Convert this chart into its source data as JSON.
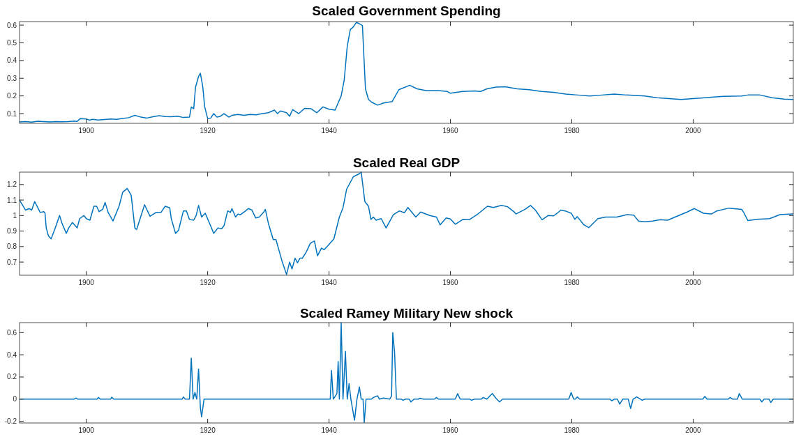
{
  "chart_data": [
    {
      "type": "line",
      "title": "Scaled Government Spending",
      "xlim": [
        1889,
        2016.5
      ],
      "ylim": [
        0.045,
        0.62
      ],
      "xticks": [
        1900,
        1920,
        1940,
        1960,
        1980,
        2000
      ],
      "yticks": [
        0.1,
        0.2,
        0.3,
        0.4,
        0.5,
        0.6
      ],
      "x": [
        1889,
        1890,
        1891,
        1892,
        1893,
        1894,
        1895,
        1896,
        1897,
        1898,
        1898.5,
        1899,
        1900,
        1900.5,
        1901,
        1902,
        1903,
        1904,
        1905,
        1906,
        1907,
        1908,
        1909,
        1910,
        1911,
        1912,
        1913,
        1914,
        1915,
        1916,
        1917,
        1917.3,
        1917.7,
        1918,
        1918.5,
        1918.8,
        1919.2,
        1919.5,
        1920,
        1920.5,
        1921,
        1921.5,
        1922,
        1922.7,
        1923.5,
        1924,
        1925,
        1926,
        1927,
        1928,
        1929,
        1930,
        1931,
        1931.5,
        1932,
        1933,
        1933.5,
        1934,
        1935,
        1936,
        1937,
        1938,
        1939,
        1940,
        1941,
        1941.5,
        1942,
        1942.5,
        1943,
        1943.5,
        1944,
        1944.5,
        1945,
        1945.5,
        1946,
        1946.5,
        1947,
        1948,
        1949,
        1950.4,
        1951.5,
        1953.3,
        1954.5,
        1956,
        1958,
        1959.5,
        1960,
        1962,
        1964,
        1965,
        1966,
        1967.5,
        1969,
        1971,
        1973,
        1975,
        1977,
        1979,
        1981,
        1983,
        1985,
        1987,
        1989,
        1992,
        1994,
        1996,
        1998,
        2000,
        2002,
        2005,
        2008,
        2009,
        2011,
        2013,
        2015,
        2016.5
      ],
      "series": [
        {
          "color": "#0072bd",
          "values": [
            0.053,
            0.055,
            0.052,
            0.057,
            0.055,
            0.053,
            0.055,
            0.054,
            0.055,
            0.058,
            0.056,
            0.072,
            0.07,
            0.063,
            0.068,
            0.064,
            0.067,
            0.07,
            0.068,
            0.073,
            0.077,
            0.09,
            0.08,
            0.075,
            0.082,
            0.088,
            0.083,
            0.082,
            0.085,
            0.078,
            0.08,
            0.137,
            0.128,
            0.25,
            0.31,
            0.328,
            0.25,
            0.14,
            0.072,
            0.075,
            0.1,
            0.08,
            0.083,
            0.1,
            0.08,
            0.09,
            0.095,
            0.09,
            0.095,
            0.093,
            0.1,
            0.105,
            0.12,
            0.1,
            0.115,
            0.105,
            0.085,
            0.123,
            0.1,
            0.13,
            0.128,
            0.105,
            0.138,
            0.125,
            0.12,
            0.16,
            0.2,
            0.29,
            0.48,
            0.575,
            0.59,
            0.615,
            0.608,
            0.598,
            0.24,
            0.18,
            0.165,
            0.148,
            0.16,
            0.168,
            0.235,
            0.26,
            0.24,
            0.23,
            0.23,
            0.225,
            0.215,
            0.225,
            0.228,
            0.225,
            0.24,
            0.25,
            0.252,
            0.24,
            0.235,
            0.225,
            0.22,
            0.21,
            0.205,
            0.2,
            0.205,
            0.21,
            0.205,
            0.2,
            0.19,
            0.185,
            0.18,
            0.185,
            0.19,
            0.198,
            0.2,
            0.205,
            0.205,
            0.19,
            0.182,
            0.18
          ]
        }
      ]
    },
    {
      "type": "line",
      "title": "Scaled Real GDP",
      "xlim": [
        1889,
        2016.5
      ],
      "ylim": [
        0.615,
        1.28
      ],
      "xticks": [
        1900,
        1920,
        1940,
        1960,
        1980,
        2000
      ],
      "yticks": [
        0.7,
        0.8,
        0.9,
        1,
        1.1,
        1.2
      ],
      "x": [
        1889,
        1889.6,
        1890,
        1890.6,
        1891,
        1891.5,
        1892.4,
        1893,
        1893.2,
        1893.4,
        1893.75,
        1894.2,
        1894.8,
        1895.6,
        1896,
        1896.7,
        1897.1,
        1897.7,
        1898.5,
        1898.9,
        1899.6,
        1900,
        1900.6,
        1901.25,
        1901.7,
        1902.1,
        1902.7,
        1903.1,
        1903.6,
        1904.4,
        1905.4,
        1906,
        1906.75,
        1907.4,
        1908,
        1908.3,
        1909.6,
        1910.5,
        1911.5,
        1912.3,
        1913,
        1913.75,
        1914,
        1914.7,
        1915.2,
        1916,
        1916.5,
        1917,
        1917.7,
        1918.1,
        1918.5,
        1919,
        1919.6,
        1920.2,
        1921,
        1921.7,
        1922.3,
        1922.7,
        1923.3,
        1923.75,
        1924,
        1924.6,
        1925,
        1925.4,
        1926.25,
        1926.7,
        1927.3,
        1927.9,
        1928.5,
        1929.2,
        1929.5,
        1930,
        1930.8,
        1931.25,
        1932.3,
        1933,
        1933.5,
        1933.9,
        1934.4,
        1934.8,
        1935.2,
        1935.6,
        1936.25,
        1936.9,
        1937.3,
        1937.6,
        1938.1,
        1938.75,
        1939.2,
        1939.8,
        1940.8,
        1941.7,
        1942.3,
        1942.9,
        1944,
        1945,
        1945.3,
        1945.9,
        1946.5,
        1946.9,
        1947.3,
        1947.75,
        1948.6,
        1949.4,
        1950.6,
        1951.6,
        1952.4,
        1953,
        1954.3,
        1955.1,
        1956.6,
        1957.7,
        1958.3,
        1959.3,
        1960,
        1960.8,
        1962.1,
        1963.1,
        1964.4,
        1966.1,
        1967.1,
        1968.4,
        1969.4,
        1970.5,
        1970.8,
        1971.3,
        1972.3,
        1973.2,
        1974,
        1975.1,
        1976.1,
        1977,
        1977.6,
        1978.2,
        1979.05,
        1979.9,
        1980.5,
        1980.9,
        1982,
        1982.8,
        1984.3,
        1985.6,
        1987.4,
        1989.1,
        1990.2,
        1991,
        1992.05,
        1993.3,
        1994.6,
        1995.8,
        1997.5,
        1999,
        2000.2,
        2001.7,
        2003,
        2003.8,
        2005.9,
        2008,
        2008.4,
        2009,
        2010.5,
        2012.6,
        2014.3,
        2016.5
      ],
      "series": [
        {
          "color": "#0072bd",
          "values": [
            1.1,
            1.06,
            1.035,
            1.045,
            1.035,
            1.09,
            1.02,
            1.025,
            1.015,
            0.92,
            0.87,
            0.85,
            0.91,
            1.0,
            0.95,
            0.885,
            0.92,
            0.955,
            0.92,
            0.98,
            1.0,
            0.98,
            0.97,
            1.06,
            1.06,
            1.025,
            1.04,
            1.085,
            1.02,
            0.965,
            1.06,
            1.15,
            1.175,
            1.13,
            0.92,
            0.91,
            1.07,
            0.995,
            1.02,
            1.02,
            1.06,
            1.05,
            0.98,
            0.885,
            0.905,
            1.03,
            1.03,
            0.975,
            0.97,
            1.0,
            1.065,
            0.99,
            1.015,
            0.96,
            0.885,
            0.92,
            0.915,
            0.935,
            1.03,
            1.02,
            1.045,
            0.99,
            1.01,
            1.005,
            1.03,
            1.045,
            1.035,
            0.985,
            0.99,
            1.02,
            1.04,
            0.95,
            0.845,
            0.845,
            0.7,
            0.62,
            0.7,
            0.655,
            0.725,
            0.695,
            0.725,
            0.725,
            0.765,
            0.82,
            0.83,
            0.835,
            0.74,
            0.79,
            0.78,
            0.805,
            0.85,
            0.99,
            1.05,
            1.17,
            1.25,
            1.27,
            1.28,
            1.09,
            1.06,
            0.975,
            0.99,
            0.97,
            0.98,
            0.92,
            1.005,
            1.03,
            1.018,
            1.052,
            0.99,
            1.023,
            1.0,
            0.99,
            0.94,
            0.985,
            0.978,
            0.944,
            0.976,
            0.973,
            1.006,
            1.06,
            1.052,
            1.065,
            1.057,
            1.023,
            1.01,
            1.02,
            1.04,
            1.065,
            1.035,
            0.973,
            1.0,
            0.998,
            1.015,
            1.035,
            1.028,
            1.015,
            0.976,
            0.993,
            0.94,
            0.922,
            0.98,
            0.99,
            0.99,
            1.006,
            1.003,
            0.964,
            0.96,
            0.964,
            0.973,
            0.97,
            0.998,
            1.023,
            1.045,
            1.015,
            1.01,
            1.028,
            1.048,
            1.04,
            1.015,
            0.968,
            0.976,
            0.98,
            1.006,
            1.01
          ]
        }
      ]
    },
    {
      "type": "line",
      "title": "Scaled Ramey Military New shock",
      "xlim": [
        1889,
        2016.5
      ],
      "ylim": [
        -0.215,
        0.69
      ],
      "xticks": [
        1900,
        1920,
        1940,
        1960,
        1980,
        2000
      ],
      "yticks": [
        -0.2,
        0,
        0.2,
        0.4,
        0.6
      ],
      "x": [
        1889,
        1898,
        1898.3,
        1898.6,
        1901.8,
        1902,
        1902.3,
        1904,
        1904.2,
        1904.5,
        1915.8,
        1916,
        1916.3,
        1917,
        1917.3,
        1917.6,
        1917.9,
        1918.2,
        1918.5,
        1918.8,
        1919,
        1919.4,
        1940.2,
        1940.4,
        1940.7,
        1941.3,
        1941.5,
        1941.7,
        1942,
        1942.3,
        1942.7,
        1943,
        1943.3,
        1943.6,
        1944.2,
        1944.6,
        1945,
        1945.3,
        1945.6,
        1945.8,
        1946.1,
        1947,
        1947.3,
        1948,
        1948.3,
        1949,
        1950,
        1950.3,
        1950.5,
        1950.8,
        1951.1,
        1951.9,
        1952.2,
        1952.6,
        1953.2,
        1953.5,
        1954,
        1954.7,
        1955,
        1955.5,
        1957.4,
        1957.7,
        1958,
        1960.8,
        1961.2,
        1961.6,
        1963.2,
        1963.5,
        1964,
        1965.1,
        1965.4,
        1966,
        1966.9,
        1967.5,
        1968.1,
        1968.6,
        1979.5,
        1979.9,
        1980.3,
        1980.6,
        1980.9,
        1981.3,
        1986.3,
        1986.6,
        1987,
        1987.5,
        1987.9,
        1988.4,
        1989.3,
        1989.7,
        1990.1,
        1990.7,
        1991.6,
        1992,
        2001.6,
        2001.9,
        2002.3,
        2005.8,
        2006.1,
        2006.5,
        2007.3,
        2007.6,
        2008.1,
        2008.5,
        2011,
        2011.3,
        2011.7,
        2012.5,
        2012.8,
        2013.2,
        2016.5
      ],
      "series": [
        {
          "color": "#0072bd",
          "values": [
            0,
            0,
            0.01,
            0,
            0,
            0.015,
            0,
            0,
            0.018,
            0,
            0,
            0.02,
            0,
            0,
            0.37,
            0,
            0.06,
            0,
            0.27,
            -0.08,
            -0.16,
            0,
            0,
            0.26,
            0,
            0.05,
            0.34,
            0,
            0.69,
            0,
            0.43,
            0,
            0.14,
            0,
            -0.19,
            0,
            0.11,
            0,
            0,
            -0.21,
            0,
            0,
            0.015,
            0.03,
            0,
            0.01,
            0,
            0.03,
            0.6,
            0.42,
            0,
            0,
            -0.01,
            0,
            0,
            -0.025,
            0,
            0,
            0.008,
            0,
            0,
            0.015,
            0,
            0,
            0.05,
            0,
            0,
            -0.01,
            0,
            0,
            0.015,
            0,
            0.05,
            0.008,
            -0.025,
            0,
            0,
            0.06,
            0,
            0,
            0.02,
            0,
            0,
            -0.015,
            0,
            0,
            -0.045,
            0,
            0,
            -0.085,
            0,
            0.02,
            -0.01,
            0,
            0,
            0.025,
            0,
            0,
            0.015,
            0,
            0,
            0.05,
            0,
            0,
            0,
            -0.025,
            0,
            0,
            -0.03,
            0,
            0
          ]
        }
      ]
    }
  ]
}
